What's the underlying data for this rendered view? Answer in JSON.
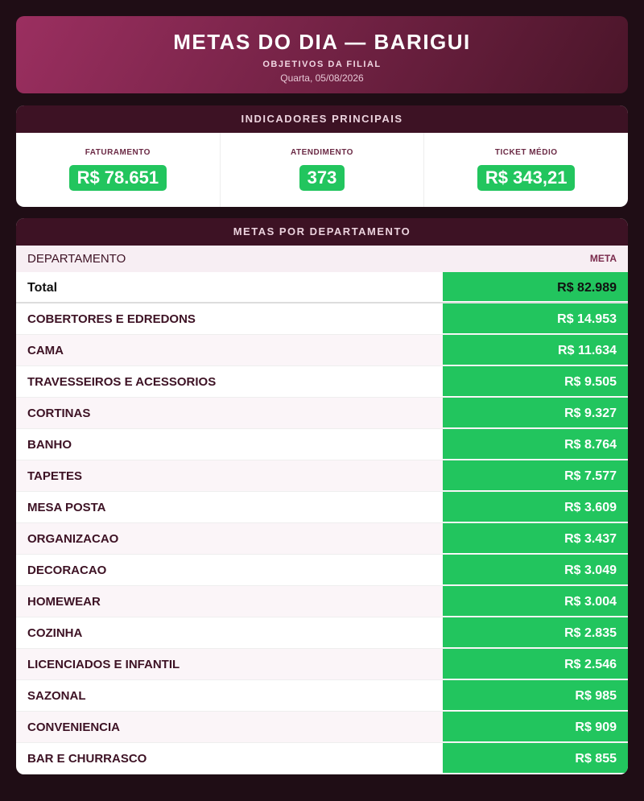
{
  "header": {
    "title": "METAS DO DIA — BARIGUI",
    "subtitle": "OBJETIVOS DA FILIAL",
    "date": "Quarta, 05/08/2026"
  },
  "indicators": {
    "title": "INDICADORES PRINCIPAIS",
    "items": [
      {
        "label": "FATURAMENTO",
        "value": "R$ 78.651"
      },
      {
        "label": "ATENDIMENTO",
        "value": "373"
      },
      {
        "label": "TICKET MÉDIO",
        "value": "R$ 343,21"
      }
    ]
  },
  "departments": {
    "title": "METAS POR DEPARTAMENTO",
    "columns": [
      "DEPARTAMENTO",
      "META"
    ],
    "total": [
      "Total",
      "R$ 82.989"
    ],
    "rows": [
      [
        "COBERTORES E EDREDONS",
        "R$ 14.953"
      ],
      [
        "CAMA",
        "R$ 11.634"
      ],
      [
        "TRAVESSEIROS E ACESSORIOS",
        "R$ 9.505"
      ],
      [
        "CORTINAS",
        "R$ 9.327"
      ],
      [
        "BANHO",
        "R$ 8.764"
      ],
      [
        "TAPETES",
        "R$ 7.577"
      ],
      [
        "MESA POSTA",
        "R$ 3.609"
      ],
      [
        "ORGANIZACAO",
        "R$ 3.437"
      ],
      [
        "DECORACAO",
        "R$ 3.049"
      ],
      [
        "HOMEWEAR",
        "R$ 3.004"
      ],
      [
        "COZINHA",
        "R$ 2.835"
      ],
      [
        "LICENCIADOS E INFANTIL",
        "R$ 2.546"
      ],
      [
        "SAZONAL",
        "R$ 985"
      ],
      [
        "CONVENIENCIA",
        "R$ 909"
      ],
      [
        "BAR E CHURRASCO",
        "R$ 855"
      ]
    ]
  }
}
